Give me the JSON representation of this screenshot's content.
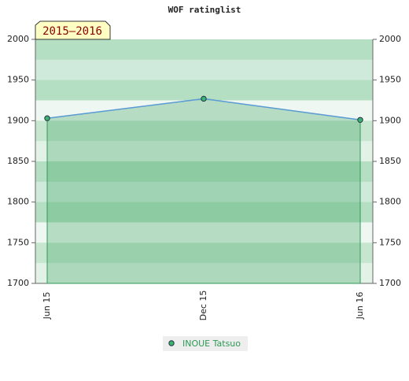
{
  "chart_data": {
    "type": "area-line",
    "title": "WOF ratinglist",
    "annotation": "2015–2016",
    "categories": [
      "Jun 15",
      "Dec 15",
      "Jun 16"
    ],
    "series": [
      {
        "name": "INOUE Tatsuo",
        "color": "#5b9bd5",
        "values": [
          1903,
          1927,
          1901
        ]
      }
    ],
    "ylim": [
      1700,
      2000
    ],
    "yticks": [
      1700,
      1750,
      1800,
      1850,
      1900,
      1950,
      2000
    ],
    "y2lim": [
      1700,
      2000
    ],
    "y2ticks": [
      1700,
      1750,
      1800,
      1850,
      1900,
      1950,
      2000
    ],
    "legend": "bottom"
  }
}
